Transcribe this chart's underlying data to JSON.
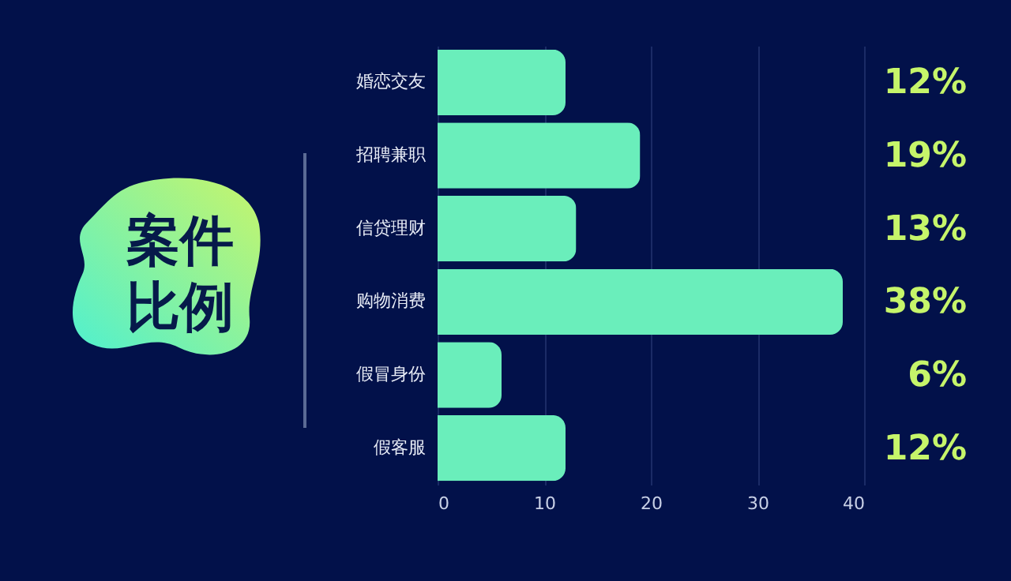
{
  "chart_data": {
    "type": "bar",
    "orientation": "horizontal",
    "title": "案件比例",
    "categories": [
      "婚恋交友",
      "招聘兼职",
      "信贷理财",
      "购物消费",
      "假冒身份",
      "假客服"
    ],
    "values": [
      12,
      19,
      13,
      38,
      6,
      12
    ],
    "value_labels": [
      "12%",
      "19%",
      "13%",
      "38%",
      "6%",
      "12%"
    ],
    "color": "#6aeebb",
    "xlim": [
      0,
      40
    ],
    "xticks": [
      0,
      10,
      20,
      30,
      40
    ],
    "grid": "x"
  }
}
